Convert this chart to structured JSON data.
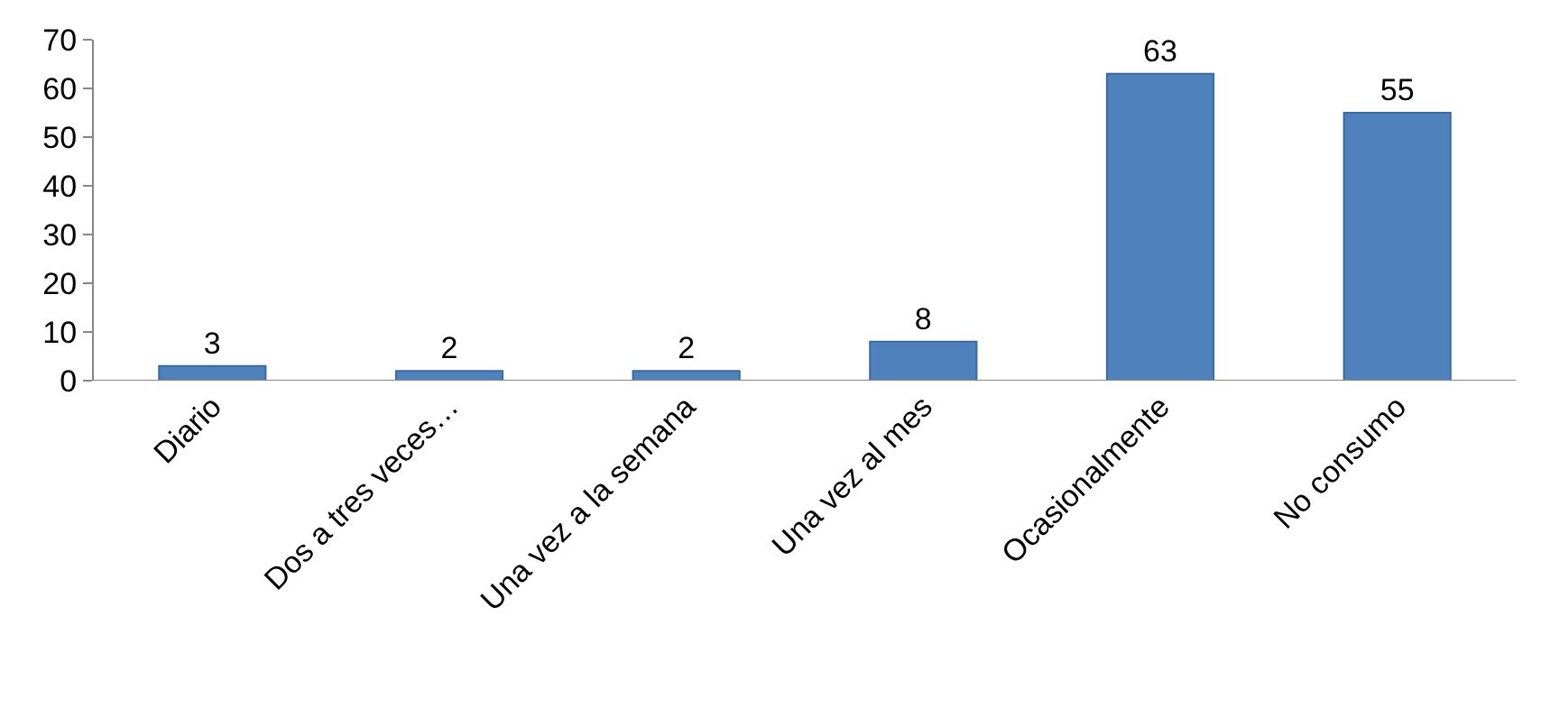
{
  "chart_data": {
    "type": "bar",
    "categories": [
      "Diario",
      "Dos a tres veces…",
      "Una vez a la semana",
      "Una vez al mes",
      "Ocasionalmente",
      "No consumo"
    ],
    "values": [
      3,
      2,
      2,
      8,
      63,
      55
    ],
    "color": "#4f81bd",
    "ylim": [
      0,
      70
    ],
    "yticks": [
      0,
      10,
      20,
      30,
      40,
      50,
      60,
      70
    ],
    "grid": false,
    "data_labels": true,
    "legend": false
  }
}
